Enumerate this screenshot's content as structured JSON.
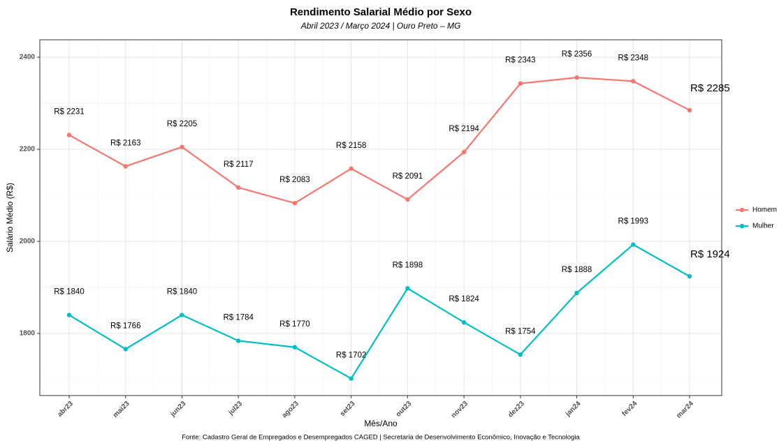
{
  "chart_data": {
    "type": "line",
    "title": "Rendimento Salarial Médio por Sexo",
    "subtitle": "Abril 2023 / Março 2024 | Ouro Preto – MG",
    "x_label": "Mês/Ano",
    "y_label": "Salário Médio (R$)",
    "caption": "Fonte: Cadastro Geral de Empregados e Desempregados CAGED | Secretaria de Desenvolvimento Econômico, Inovação e Tecnologia",
    "categories": [
      "abr23",
      "mai23",
      "jun23",
      "jul23",
      "ago23",
      "set23",
      "out23",
      "nov23",
      "dez23",
      "jan24",
      "fev24",
      "mar24"
    ],
    "series": [
      {
        "name": "Homem",
        "color": "#F8766D",
        "values": [
          2231,
          2163,
          2205,
          2117,
          2083,
          2158,
          2091,
          2194,
          2343,
          2356,
          2348,
          2285
        ],
        "value_labels": [
          "R$ 2231",
          "R$ 2163",
          "R$ 2205",
          "R$ 2117",
          "R$ 2083",
          "R$ 2158",
          "R$ 2091",
          "R$ 2194",
          "R$ 2343",
          "R$ 2356",
          "R$ 2348",
          "R$ 2285"
        ]
      },
      {
        "name": "Mulher",
        "color": "#00BFC4",
        "values": [
          1840,
          1766,
          1840,
          1784,
          1770,
          1702,
          1898,
          1824,
          1754,
          1888,
          1993,
          1924
        ],
        "value_labels": [
          "R$ 1840",
          "R$ 1766",
          "R$ 1840",
          "R$ 1784",
          "R$ 1770",
          "R$ 1702",
          "R$ 1898",
          "R$ 1824",
          "R$ 1754",
          "R$ 1888",
          "R$ 1993",
          "R$ 1924"
        ]
      }
    ],
    "ylim": [
      1665,
      2438
    ],
    "yticks": [
      1800,
      2000,
      2200,
      2400
    ],
    "grid": true,
    "legend": "right"
  }
}
